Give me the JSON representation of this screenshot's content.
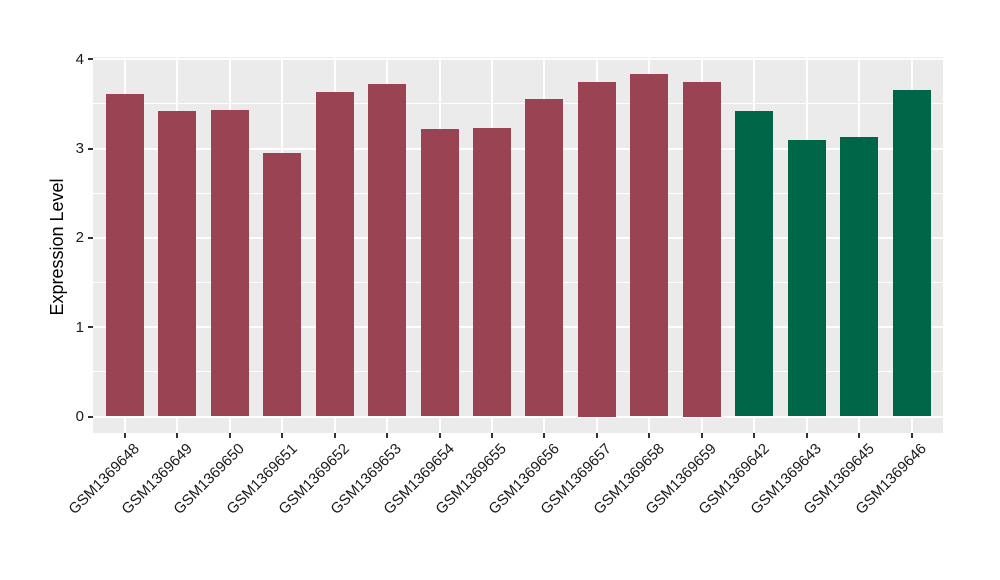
{
  "figure": {
    "background": "#ffffff",
    "panel_background": "#ebebeb",
    "gridline_color": "#ffffff",
    "tick_color": "#333333",
    "text_color": "#1a1a1a"
  },
  "chart_data": {
    "type": "bar",
    "title": "",
    "xlabel": "",
    "ylabel": "Expression Level",
    "ylim": [
      0,
      4
    ],
    "yticks": [
      0,
      1,
      2,
      3,
      4
    ],
    "yticks_minor": [
      0.5,
      1.5,
      2.5,
      3.5
    ],
    "grid": "white major+minor horizontal lines and major vertical lines on gray panel",
    "legend_position": "none",
    "x_tick_rotation_deg": 45,
    "categories": [
      "GSM1369648",
      "GSM1369649",
      "GSM1369650",
      "GSM1369651",
      "GSM1369652",
      "GSM1369653",
      "GSM1369654",
      "GSM1369655",
      "GSM1369656",
      "GSM1369657",
      "GSM1369658",
      "GSM1369659",
      "GSM1369642",
      "GSM1369643",
      "GSM1369645",
      "GSM1369646"
    ],
    "values": [
      3.61,
      3.42,
      3.43,
      2.95,
      3.63,
      3.72,
      3.22,
      3.23,
      3.56,
      3.75,
      3.84,
      3.75,
      3.42,
      3.1,
      3.13,
      3.66
    ],
    "bar_groups": [
      "maroon",
      "maroon",
      "maroon",
      "maroon",
      "maroon",
      "maroon",
      "maroon",
      "maroon",
      "maroon",
      "maroon",
      "maroon",
      "maroon",
      "green",
      "green",
      "green",
      "green"
    ],
    "group_colors": {
      "maroon": "#9a4453",
      "green": "#006648"
    }
  }
}
